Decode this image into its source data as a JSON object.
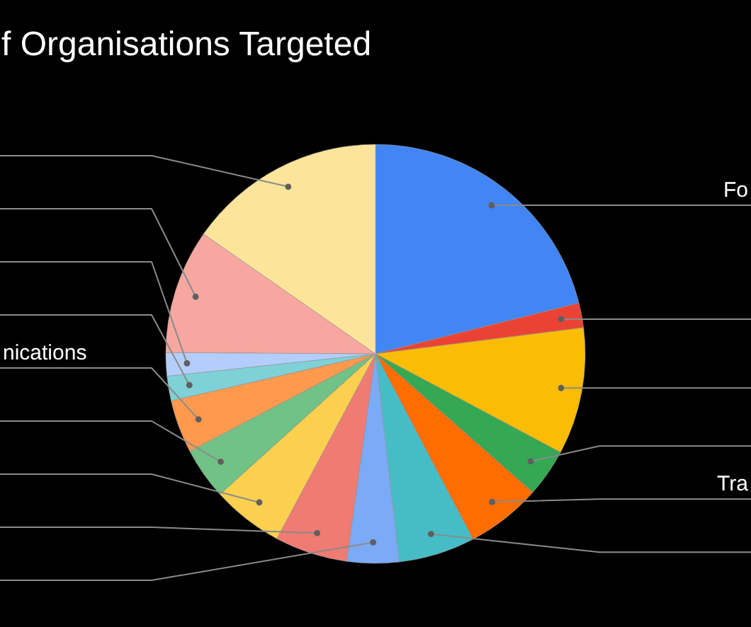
{
  "chart_data": {
    "type": "pie",
    "title": "f Organisations Targeted",
    "categories": [
      "Fo",
      null,
      null,
      null,
      "Tra",
      null,
      null,
      null,
      null,
      null,
      "nications",
      null,
      null,
      null,
      null
    ],
    "values": [
      21.1,
      1.9,
      9.8,
      3.7,
      5.8,
      5.9,
      4.0,
      5.6,
      5.5,
      4.0,
      4.1,
      1.9,
      1.8,
      9.6,
      15.3
    ],
    "colors": [
      "#4285f4",
      "#ea4335",
      "#fbbc04",
      "#34a853",
      "#ff6d01",
      "#46bdc6",
      "#7baaf7",
      "#f07b72",
      "#fcd04f",
      "#71c287",
      "#ff994d",
      "#7ed1d7",
      "#b3cefb",
      "#f7a7a0",
      "#fde49b"
    ]
  }
}
